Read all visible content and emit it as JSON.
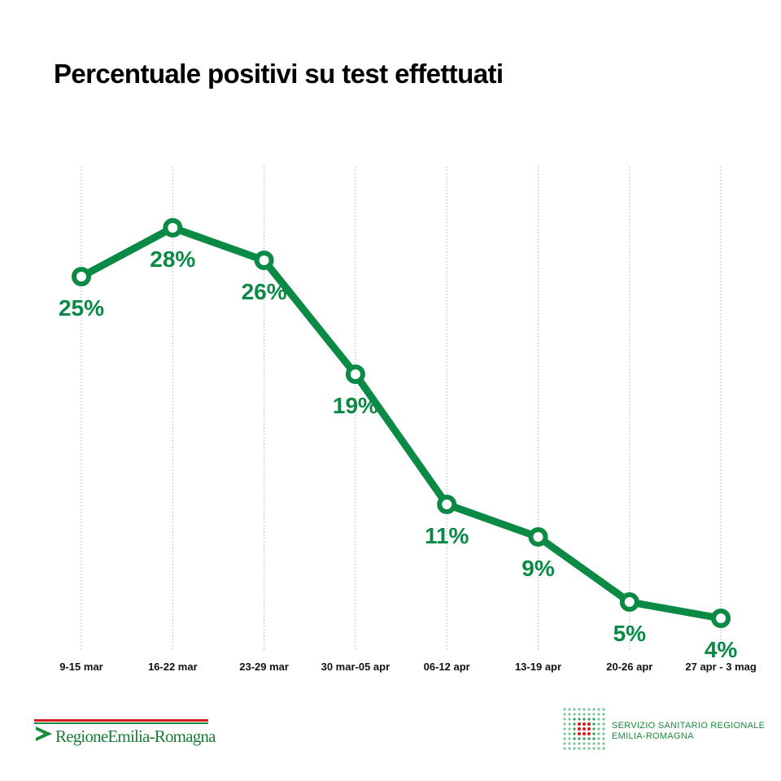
{
  "title": "Percentuale positivi su test effettuati",
  "colors": {
    "line": "#0a8a45",
    "label": "#0a8a45",
    "grid": "#b0b0b0",
    "axis_text": "#111111",
    "brand_red": "#d71920",
    "brand_green": "#1b8a3c"
  },
  "chart_data": {
    "type": "line",
    "title": "Percentuale positivi su test effettuati",
    "xlabel": "",
    "ylabel": "",
    "categories": [
      "9-15 mar",
      "16-22 mar",
      "23-29 mar",
      "30 mar-05 apr",
      "06-12 apr",
      "13-19 apr",
      "20-26 apr",
      "27 apr - 3 mag"
    ],
    "series": [
      {
        "name": "Percentuale positivi",
        "values": [
          25,
          28,
          26,
          19,
          11,
          9,
          5,
          4
        ],
        "labels": [
          "25%",
          "28%",
          "26%",
          "19%",
          "11%",
          "9%",
          "5%",
          "4%"
        ]
      }
    ],
    "ylim": [
      0,
      30
    ],
    "grid": "vertical dotted lines at each category",
    "legend": "none"
  },
  "footer": {
    "left_logo_text": "RegioneEmilia-Romagna",
    "right_line1": "SERVIZIO SANITARIO REGIONALE",
    "right_line2": "EMILIA-ROMAGNA"
  }
}
